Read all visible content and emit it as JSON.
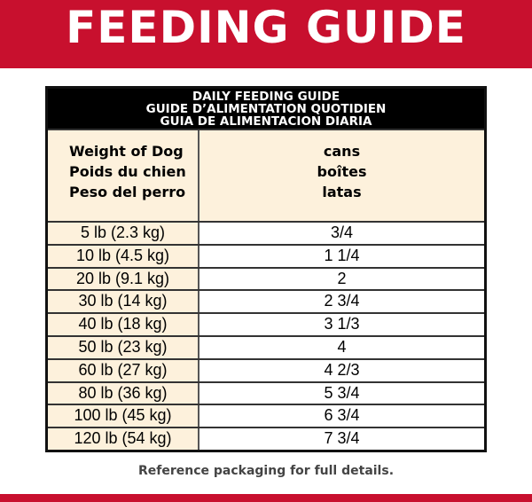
{
  "banner": "FEEDING GUIDE",
  "table": {
    "title": [
      "DAILY FEEDING GUIDE",
      "GUIDE D’ALIMENTATION QUOTIDIEN",
      "GUIA DE ALIMENTACION DIARIA"
    ],
    "col1": [
      "Weight of Dog",
      "Poids du chien",
      "Peso del perro"
    ],
    "col2": [
      "cans",
      "boîtes",
      "latas"
    ],
    "rows": [
      {
        "weight": "5 lb (2.3 kg)",
        "amount": "3/4"
      },
      {
        "weight": "10 lb (4.5 kg)",
        "amount": "1 1/4"
      },
      {
        "weight": "20 lb (9.1 kg)",
        "amount": "2"
      },
      {
        "weight": "30 lb (14 kg)",
        "amount": "2 3/4"
      },
      {
        "weight": "40 lb (18 kg)",
        "amount": "3 1/3"
      },
      {
        "weight": "50 lb (23 kg)",
        "amount": "4"
      },
      {
        "weight": "60 lb (27 kg)",
        "amount": "4 2/3"
      },
      {
        "weight": "80 lb (36 kg)",
        "amount": "5 3/4"
      },
      {
        "weight": "100 lb (45 kg)",
        "amount": "6 3/4"
      },
      {
        "weight": "120 lb (54 kg)",
        "amount": "7 3/4"
      }
    ]
  },
  "note": "Reference packaging for full details.",
  "colors": {
    "brand_red": "#c8102e",
    "cream": "#fdf1dc"
  }
}
